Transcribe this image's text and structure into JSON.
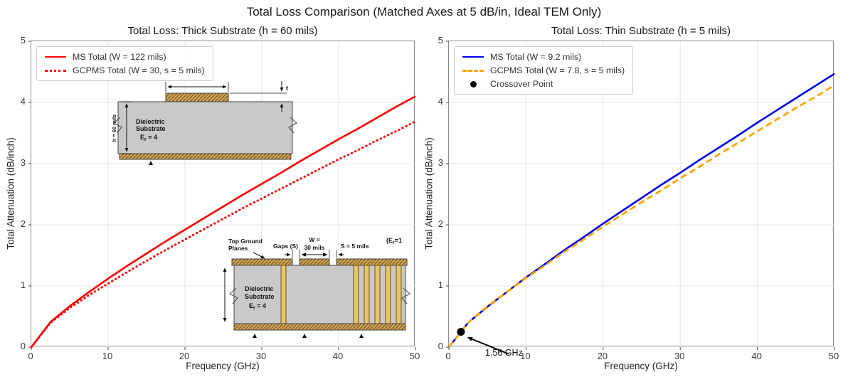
{
  "figure": {
    "title": "Total Loss Comparison (Matched Axes at 5 dB/in, Ideal TEM Only)"
  },
  "subplots": [
    {
      "title": "Total Loss: Thick Substrate (h = 60 mils)",
      "xlabel": "Frequency (GHz)",
      "ylabel": "Total Attenuation (dB/inch)",
      "xticks": [
        "0",
        "10",
        "20",
        "30",
        "40",
        "50"
      ],
      "yticks": [
        "0",
        "1",
        "2",
        "3",
        "4",
        "5"
      ],
      "legend": [
        {
          "label": "MS Total (W = 122 mils)",
          "color": "#ff0000",
          "style": "solid"
        },
        {
          "label": "GCPMS Total (W = 30, s = 5 mils)",
          "color": "#ff0000",
          "style": "dotted"
        }
      ]
    },
    {
      "title": "Total Loss: Thin Substrate (h = 5 mils)",
      "xlabel": "Frequency (GHz)",
      "ylabel": "Total Attenuation (dB/inch)",
      "xticks": [
        "0",
        "10",
        "20",
        "30",
        "40",
        "50"
      ],
      "yticks": [
        "0",
        "1",
        "2",
        "3",
        "4",
        "5"
      ],
      "legend": [
        {
          "label": "MS Total (W = 9.2 mils)",
          "color": "#0000ee",
          "style": "solid"
        },
        {
          "label": "GCPMS Total (W = 7.8, s = 5 mils)",
          "color": "#ffa500",
          "style": "dashed"
        },
        {
          "label": "Crossover Point",
          "color": "#000000",
          "style": "dot-marker"
        }
      ],
      "annotation_label": "1.56 GHz"
    }
  ],
  "chart_data": [
    {
      "type": "line",
      "title": "Total Loss: Thick Substrate (h = 60 mils)",
      "xlabel": "Frequency (GHz)",
      "ylabel": "Total Attenuation (dB/inch)",
      "xlim": [
        0,
        50
      ],
      "ylim": [
        0,
        5
      ],
      "grid": true,
      "legend_position": "upper left",
      "xticks": [
        0,
        10,
        20,
        30,
        40,
        50
      ],
      "yticks": [
        0,
        1,
        2,
        3,
        4,
        5
      ],
      "x": [
        0,
        2.5,
        5,
        7.5,
        10,
        12.5,
        15,
        17.5,
        20,
        22.5,
        25,
        27.5,
        30,
        32.5,
        35,
        37.5,
        40,
        42.5,
        45,
        47.5,
        50
      ],
      "series": [
        {
          "name": "MS Total (W = 122 mils)",
          "color": "#ff0000",
          "dash": "solid",
          "values": [
            0,
            0.41,
            0.67,
            0.9,
            1.12,
            1.33,
            1.53,
            1.73,
            1.92,
            2.11,
            2.3,
            2.49,
            2.67,
            2.85,
            3.04,
            3.22,
            3.4,
            3.57,
            3.75,
            3.93,
            4.1
          ]
        },
        {
          "name": "GCPMS Total (W = 30, s = 5 mils)",
          "color": "#ff0000",
          "dash": "dotted",
          "values": [
            0,
            0.4,
            0.64,
            0.85,
            1.04,
            1.23,
            1.41,
            1.59,
            1.76,
            1.93,
            2.1,
            2.27,
            2.43,
            2.59,
            2.75,
            2.91,
            3.07,
            3.22,
            3.38,
            3.53,
            3.69
          ]
        }
      ]
    },
    {
      "type": "line",
      "title": "Total Loss: Thin Substrate (h = 5 mils)",
      "xlabel": "Frequency (GHz)",
      "ylabel": "Total Attenuation (dB/inch)",
      "xlim": [
        0,
        50
      ],
      "ylim": [
        0,
        5
      ],
      "grid": true,
      "legend_position": "upper left",
      "xticks": [
        0,
        10,
        20,
        30,
        40,
        50
      ],
      "yticks": [
        0,
        1,
        2,
        3,
        4,
        5
      ],
      "x": [
        0,
        2.5,
        5,
        7.5,
        10,
        12.5,
        15,
        17.5,
        20,
        22.5,
        25,
        27.5,
        30,
        32.5,
        35,
        37.5,
        40,
        42.5,
        45,
        47.5,
        50
      ],
      "series": [
        {
          "name": "MS Total (W = 9.2 mils)",
          "color": "#0000ee",
          "dash": "solid",
          "values": [
            0,
            0.4,
            0.66,
            0.9,
            1.14,
            1.36,
            1.59,
            1.8,
            2.02,
            2.23,
            2.44,
            2.65,
            2.85,
            3.06,
            3.26,
            3.46,
            3.67,
            3.87,
            4.07,
            4.27,
            4.47
          ]
        },
        {
          "name": "GCPMS Total (W = 7.8, s = 5 mils)",
          "color": "#ffa500",
          "dash": "dashed",
          "values": [
            0,
            0.4,
            0.67,
            0.9,
            1.13,
            1.34,
            1.56,
            1.76,
            1.97,
            2.17,
            2.37,
            2.56,
            2.76,
            2.95,
            3.15,
            3.34,
            3.53,
            3.72,
            3.91,
            4.09,
            4.28
          ]
        }
      ],
      "annotation": {
        "label": "1.56 GHz",
        "x": 1.56,
        "y": 0.25
      }
    }
  ],
  "insets": {
    "microstrip": {
      "h_label": "h = 60 mils",
      "line1": "Dielectric",
      "line2": "Substrate",
      "er_base": "E",
      "er_sub": "r",
      "er_eq": " = 4",
      "t_label": "t"
    },
    "gcpms": {
      "top_ground_1": "Top Ground",
      "top_ground_2": "Planes",
      "gaps": "Gaps (S)",
      "w_1": "W =",
      "w_2": "30 mils",
      "s": "S = 5 mils",
      "er_air_pre": "(E",
      "er_air_sub": "r",
      "er_air_post": "=1",
      "line1": "Dielectric",
      "line2": "Substrate",
      "er_base": "E",
      "er_sub": "r",
      "er_eq": " = 4"
    }
  }
}
